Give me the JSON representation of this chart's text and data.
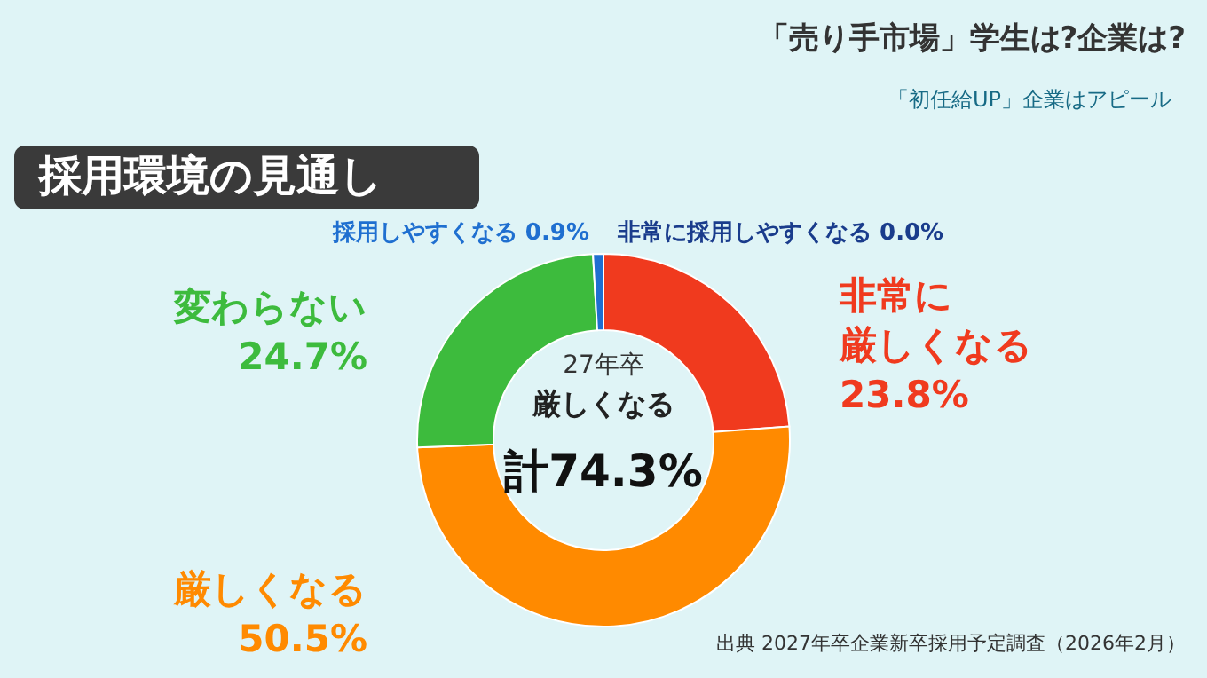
{
  "chart_data": {
    "type": "donut",
    "title": "採用環境の見通し",
    "categories": [
      "非常に厳しくなる",
      "厳しくなる",
      "変わらない",
      "採用しやすくなる",
      "非常に採用しやすくなる"
    ],
    "values": [
      23.8,
      50.5,
      24.7,
      0.9,
      0.0
    ],
    "value_labels": [
      "23.8%",
      "50.5%",
      "24.7%",
      "0.9%",
      "0.0%"
    ],
    "colors": [
      "#f03a1e",
      "#ff8a00",
      "#3dbb3d",
      "#1f6fd0",
      "#1a3c8c"
    ],
    "annotations": [
      "「売り手市場」学生は?企業は?",
      "「初任給UP」企業はアピール",
      "27年卒",
      "厳しくなる",
      "計74.3%",
      "出典 2027年卒企業新卒採用予定調査（2026年2月）"
    ]
  }
}
